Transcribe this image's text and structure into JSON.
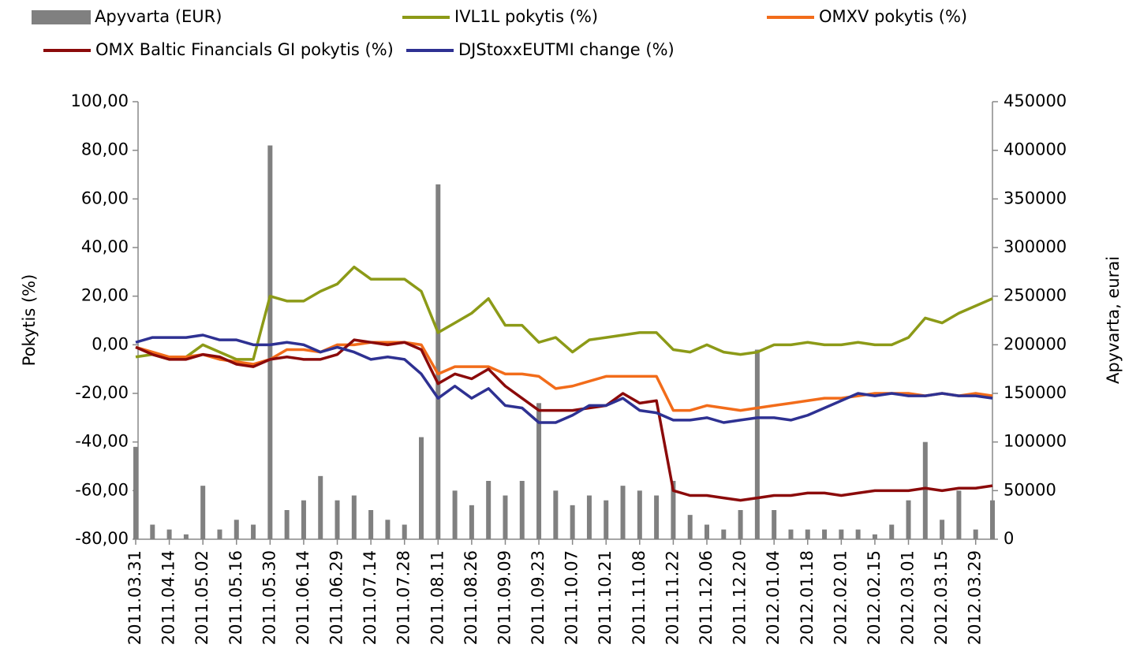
{
  "chart_data": {
    "type": "line",
    "ylabel": "Pokytis (%)",
    "y2label": "Apyvarta, eurai",
    "categories": [
      "2011.03.31",
      null,
      "2011.04.14",
      null,
      "2011.05.02",
      null,
      "2011.05.16",
      null,
      "2011.05.30",
      null,
      "2011.06.14",
      null,
      "2011.06.29",
      null,
      "2011.07.14",
      null,
      "2011.07.28",
      null,
      "2011.08.11",
      null,
      "2011.08.26",
      null,
      "2011.09.09",
      null,
      "2011.09.23",
      null,
      "2011.10.07",
      null,
      "2011.10.21",
      null,
      "2011.11.08",
      null,
      "2011.11.22",
      null,
      "2011.12.06",
      null,
      "2011.12.20",
      null,
      "2012.01.04",
      null,
      "2012.01.18",
      null,
      "2012.02.01",
      null,
      "2012.02.15",
      null,
      "2012.03.01",
      null,
      "2012.03.15",
      null,
      "2012.03.29",
      null
    ],
    "ylim": [
      -80,
      100
    ],
    "yticks": [
      {
        "value": -80,
        "label": "-80,00"
      },
      {
        "value": -60,
        "label": "-60,00"
      },
      {
        "value": -40,
        "label": "-40,00"
      },
      {
        "value": -20,
        "label": "-20,00"
      },
      {
        "value": 0,
        "label": "0,00"
      },
      {
        "value": 20,
        "label": "20,00"
      },
      {
        "value": 40,
        "label": "40,00"
      },
      {
        "value": 60,
        "label": "60,00"
      },
      {
        "value": 80,
        "label": "80,00"
      },
      {
        "value": 100,
        "label": "100,00"
      }
    ],
    "y2lim": [
      0,
      450000
    ],
    "y2ticks": [
      0,
      50000,
      100000,
      150000,
      200000,
      250000,
      300000,
      350000,
      400000,
      450000
    ],
    "series": [
      {
        "name": "Apyvarta (EUR)",
        "type": "bar",
        "axis": "y2",
        "color": "#808080",
        "values": [
          95000,
          15000,
          10000,
          5000,
          55000,
          10000,
          20000,
          15000,
          405000,
          30000,
          40000,
          65000,
          40000,
          45000,
          30000,
          20000,
          15000,
          105000,
          365000,
          50000,
          35000,
          60000,
          45000,
          60000,
          140000,
          50000,
          35000,
          45000,
          40000,
          55000,
          50000,
          45000,
          60000,
          25000,
          15000,
          10000,
          30000,
          195000,
          30000,
          10000,
          10000,
          10000,
          10000,
          10000,
          5000,
          15000,
          40000,
          100000,
          20000,
          50000,
          10000,
          40000
        ]
      },
      {
        "name": "IVL1L pokytis (%)",
        "type": "line",
        "color": "#8c9a17",
        "values": [
          -5,
          -4,
          -6,
          -5,
          0,
          -3,
          -6,
          -6,
          20,
          18,
          18,
          22,
          25,
          32,
          27,
          27,
          27,
          22,
          5,
          9,
          13,
          19,
          8,
          8,
          1,
          3,
          -3,
          2,
          3,
          4,
          5,
          5,
          -2,
          -3,
          0,
          -3,
          -4,
          -3,
          0,
          0,
          1,
          0,
          0,
          1,
          0,
          0,
          3,
          11,
          9,
          13,
          16,
          19
        ]
      },
      {
        "name": "OMXV pokytis (%)",
        "type": "line",
        "color": "#f26c1a",
        "values": [
          -1,
          -3,
          -5,
          -5,
          -4,
          -6,
          -7,
          -8,
          -6,
          -2,
          -2,
          -3,
          0,
          0,
          1,
          1,
          1,
          0,
          -12,
          -9,
          -9,
          -9,
          -12,
          -12,
          -13,
          -18,
          -17,
          -15,
          -13,
          -13,
          -13,
          -13,
          -27,
          -27,
          -25,
          -26,
          -27,
          -26,
          -25,
          -24,
          -23,
          -22,
          -22,
          -21,
          -20,
          -20,
          -20,
          -21,
          -20,
          -21,
          -20,
          -21
        ]
      },
      {
        "name": "OMX Baltic Financials GI pokytis (%)",
        "type": "line",
        "color": "#8b0a0a",
        "values": [
          -1,
          -4,
          -6,
          -6,
          -4,
          -5,
          -8,
          -9,
          -6,
          -5,
          -6,
          -6,
          -4,
          2,
          1,
          0,
          1,
          -2,
          -16,
          -12,
          -14,
          -10,
          -17,
          -22,
          -27,
          -27,
          -27,
          -26,
          -25,
          -20,
          -24,
          -23,
          -60,
          -62,
          -62,
          -63,
          -64,
          -63,
          -62,
          -62,
          -61,
          -61,
          -62,
          -61,
          -60,
          -60,
          -60,
          -59,
          -60,
          -59,
          -59,
          -58
        ]
      },
      {
        "name": "DJStoxxEUTMI change (%)",
        "type": "line",
        "color": "#2e3192",
        "values": [
          1,
          3,
          3,
          3,
          4,
          2,
          2,
          0,
          0,
          1,
          0,
          -3,
          -1,
          -3,
          -6,
          -5,
          -6,
          -12,
          -22,
          -17,
          -22,
          -18,
          -25,
          -26,
          -32,
          -32,
          -29,
          -25,
          -25,
          -22,
          -27,
          -28,
          -31,
          -31,
          -30,
          -32,
          -31,
          -30,
          -30,
          -31,
          -29,
          -26,
          -23,
          -20,
          -21,
          -20,
          -21,
          -21,
          -20,
          -21,
          -21,
          -22
        ]
      }
    ]
  }
}
